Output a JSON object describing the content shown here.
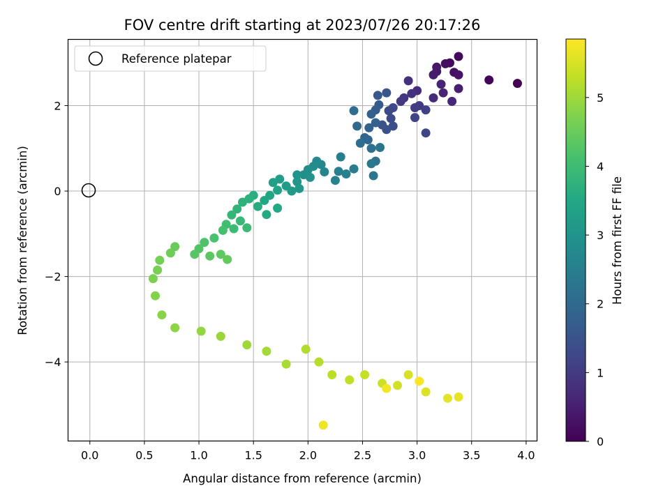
{
  "chart_data": {
    "type": "scatter",
    "title": "FOV centre drift starting at 2023/07/26 20:17:26",
    "xlabel": "Angular distance from reference (arcmin)",
    "ylabel": "Rotation from reference (arcmin)",
    "xlim": [
      -0.2,
      4.1
    ],
    "ylim": [
      -5.85,
      3.55
    ],
    "xticks": [
      "0.0",
      "0.5",
      "1.0",
      "1.5",
      "2.0",
      "2.5",
      "3.0",
      "3.5",
      "4.0"
    ],
    "yticks": [
      "−4",
      "−2",
      "0",
      "2"
    ],
    "grid": true,
    "legend": {
      "label": "Reference platepar",
      "position": "top-left"
    },
    "reference_point": {
      "x": 0.0,
      "y": 0.0
    },
    "colorbar": {
      "label": "Hours from first FF file",
      "colormap": "viridis",
      "range": [
        0,
        5.85
      ],
      "ticks": [
        "0",
        "1",
        "2",
        "3",
        "4",
        "5"
      ]
    },
    "points": [
      [
        3.92,
        2.52,
        0.0
      ],
      [
        3.66,
        2.6,
        0.05
      ],
      [
        3.38,
        3.15,
        0.1
      ],
      [
        3.3,
        3.0,
        0.15
      ],
      [
        3.26,
        2.98,
        0.2
      ],
      [
        3.34,
        2.78,
        0.25
      ],
      [
        3.38,
        2.72,
        0.3
      ],
      [
        3.18,
        2.9,
        0.35
      ],
      [
        3.18,
        2.8,
        0.4
      ],
      [
        3.15,
        2.72,
        0.45
      ],
      [
        3.38,
        2.4,
        0.5
      ],
      [
        3.22,
        2.5,
        0.55
      ],
      [
        3.24,
        2.3,
        0.6
      ],
      [
        3.32,
        2.1,
        0.65
      ],
      [
        3.15,
        2.18,
        0.7
      ],
      [
        3.0,
        2.35,
        0.75
      ],
      [
        2.92,
        2.58,
        0.8
      ],
      [
        2.95,
        2.28,
        0.85
      ],
      [
        2.88,
        2.18,
        0.9
      ],
      [
        2.85,
        2.1,
        0.95
      ],
      [
        3.02,
        2.0,
        1.0
      ],
      [
        2.98,
        1.95,
        1.05
      ],
      [
        3.08,
        1.9,
        1.1
      ],
      [
        2.98,
        1.72,
        1.15
      ],
      [
        3.08,
        1.36,
        1.2
      ],
      [
        2.78,
        1.95,
        1.25
      ],
      [
        2.74,
        1.88,
        1.3
      ],
      [
        2.76,
        1.7,
        1.35
      ],
      [
        2.78,
        1.52,
        1.4
      ],
      [
        2.72,
        1.44,
        1.45
      ],
      [
        2.68,
        1.55,
        1.5
      ],
      [
        2.72,
        2.3,
        1.55
      ],
      [
        2.64,
        2.24,
        1.6
      ],
      [
        2.65,
        2.02,
        1.65
      ],
      [
        2.62,
        1.9,
        1.7
      ],
      [
        2.58,
        1.8,
        1.75
      ],
      [
        2.62,
        1.6,
        1.8
      ],
      [
        2.56,
        1.48,
        1.85
      ],
      [
        2.52,
        1.25,
        1.9
      ],
      [
        2.55,
        1.2,
        1.95
      ],
      [
        2.45,
        1.52,
        2.0
      ],
      [
        2.42,
        1.88,
        2.05
      ],
      [
        2.48,
        1.12,
        2.1
      ],
      [
        2.58,
        1.0,
        2.15
      ],
      [
        2.62,
        0.7,
        2.2
      ],
      [
        2.66,
        1.02,
        2.25
      ],
      [
        2.6,
        0.36,
        2.3
      ],
      [
        2.58,
        0.64,
        2.35
      ],
      [
        2.42,
        0.52,
        2.4
      ],
      [
        2.3,
        0.8,
        2.45
      ],
      [
        2.28,
        0.46,
        2.5
      ],
      [
        2.35,
        0.4,
        2.55
      ],
      [
        2.25,
        0.25,
        2.6
      ],
      [
        2.15,
        0.45,
        2.65
      ],
      [
        2.12,
        0.62,
        2.7
      ],
      [
        2.08,
        0.7,
        2.75
      ],
      [
        2.05,
        0.58,
        2.8
      ],
      [
        2.0,
        0.5,
        2.85
      ],
      [
        1.96,
        0.38,
        2.9
      ],
      [
        2.02,
        0.32,
        2.95
      ],
      [
        1.9,
        0.38,
        3.0
      ],
      [
        1.9,
        0.22,
        3.05
      ],
      [
        1.92,
        0.06,
        3.1
      ],
      [
        1.85,
        0.0,
        3.15
      ],
      [
        1.8,
        0.12,
        3.2
      ],
      [
        1.74,
        0.28,
        3.25
      ],
      [
        1.68,
        0.2,
        3.3
      ],
      [
        1.72,
        0.02,
        3.35
      ],
      [
        1.65,
        -0.1,
        3.4
      ],
      [
        1.6,
        -0.22,
        3.45
      ],
      [
        1.72,
        -0.4,
        3.5
      ],
      [
        1.62,
        -0.55,
        3.55
      ],
      [
        1.54,
        -0.36,
        3.6
      ],
      [
        1.5,
        -0.1,
        3.65
      ],
      [
        1.46,
        -0.18,
        3.7
      ],
      [
        1.4,
        -0.26,
        3.75
      ],
      [
        1.35,
        -0.42,
        3.8
      ],
      [
        1.3,
        -0.56,
        3.85
      ],
      [
        1.38,
        -0.7,
        3.9
      ],
      [
        1.44,
        -0.86,
        3.95
      ],
      [
        1.32,
        -0.88,
        4.0
      ],
      [
        1.25,
        -0.78,
        4.05
      ],
      [
        1.22,
        -0.92,
        4.1
      ],
      [
        1.14,
        -1.1,
        4.15
      ],
      [
        1.05,
        -1.2,
        4.2
      ],
      [
        1.0,
        -1.35,
        4.25
      ],
      [
        0.96,
        -1.48,
        4.3
      ],
      [
        1.1,
        -1.52,
        4.35
      ],
      [
        1.2,
        -1.48,
        4.4
      ],
      [
        1.26,
        -1.6,
        4.45
      ],
      [
        0.78,
        -1.3,
        4.5
      ],
      [
        0.74,
        -1.45,
        4.55
      ],
      [
        0.64,
        -1.62,
        4.6
      ],
      [
        0.62,
        -1.85,
        4.65
      ],
      [
        0.58,
        -2.05,
        4.7
      ],
      [
        0.6,
        -2.45,
        4.75
      ],
      [
        0.66,
        -2.9,
        4.8
      ],
      [
        0.78,
        -3.2,
        4.85
      ],
      [
        1.02,
        -3.28,
        4.9
      ],
      [
        1.2,
        -3.4,
        4.95
      ],
      [
        1.44,
        -3.6,
        5.0
      ],
      [
        1.62,
        -3.75,
        5.05
      ],
      [
        1.8,
        -4.05,
        5.1
      ],
      [
        1.98,
        -3.7,
        5.15
      ],
      [
        2.1,
        -4.0,
        5.2
      ],
      [
        2.22,
        -4.3,
        5.25
      ],
      [
        2.38,
        -4.42,
        5.3
      ],
      [
        2.52,
        -4.3,
        5.35
      ],
      [
        2.68,
        -4.5,
        5.4
      ],
      [
        2.82,
        -4.55,
        5.45
      ],
      [
        2.92,
        -4.3,
        5.5
      ],
      [
        3.08,
        -4.7,
        5.55
      ],
      [
        3.28,
        -4.85,
        5.6
      ],
      [
        3.38,
        -4.82,
        5.65
      ],
      [
        2.14,
        -5.48,
        5.7
      ],
      [
        2.72,
        -4.62,
        5.75
      ],
      [
        3.02,
        -4.45,
        5.8
      ]
    ]
  }
}
